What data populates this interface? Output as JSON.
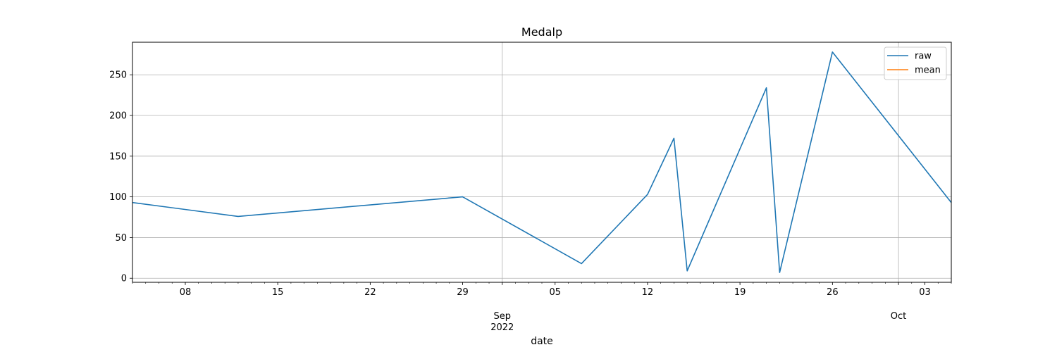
{
  "chart_data": {
    "type": "line",
    "title": "Medalp",
    "xlabel": "date",
    "ylabel": "",
    "xlim": [
      "2022-08-04",
      "2022-10-05"
    ],
    "ylim": [
      -5,
      290
    ],
    "grid": true,
    "legend_position": "top-right",
    "y_ticks": [
      0,
      50,
      100,
      150,
      200,
      250
    ],
    "x_major_ticks": [
      {
        "date": "2022-09-01",
        "label": "Sep",
        "sublabel": "2022"
      },
      {
        "date": "2022-10-01",
        "label": "Oct",
        "sublabel": ""
      }
    ],
    "x_minor_tick_labels": [
      {
        "date": "2022-08-08",
        "label": "08"
      },
      {
        "date": "2022-08-15",
        "label": "15"
      },
      {
        "date": "2022-08-22",
        "label": "22"
      },
      {
        "date": "2022-08-29",
        "label": "29"
      },
      {
        "date": "2022-09-05",
        "label": "05"
      },
      {
        "date": "2022-09-12",
        "label": "12"
      },
      {
        "date": "2022-09-19",
        "label": "19"
      },
      {
        "date": "2022-09-26",
        "label": "26"
      },
      {
        "date": "2022-10-03",
        "label": "03"
      }
    ],
    "series": [
      {
        "name": "raw",
        "color": "#1f77b4",
        "x": [
          "2022-08-04",
          "2022-08-12",
          "2022-08-29",
          "2022-09-07",
          "2022-09-12",
          "2022-09-14",
          "2022-09-15",
          "2022-09-21",
          "2022-09-22",
          "2022-09-26",
          "2022-10-05"
        ],
        "y": [
          93,
          76,
          100,
          18,
          103,
          172,
          9,
          234,
          7,
          278,
          93
        ]
      },
      {
        "name": "mean",
        "color": "#ff7f0e",
        "x": [],
        "y": []
      }
    ]
  }
}
